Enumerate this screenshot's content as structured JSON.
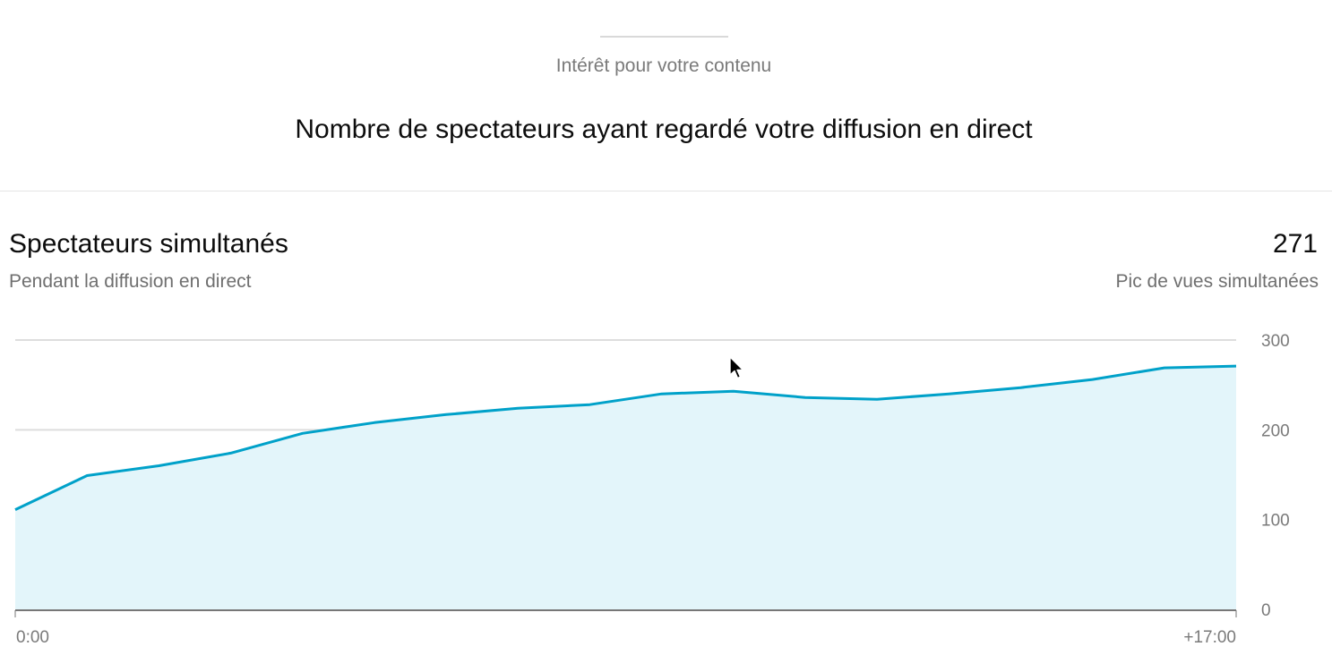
{
  "header": {
    "eyebrow": "Intérêt pour votre contenu",
    "title": "Nombre de spectateurs ayant regardé votre diffusion en direct"
  },
  "card": {
    "title": "Spectateurs simultanés",
    "subtitle": "Pendant la diffusion en direct",
    "metric_value": "271",
    "metric_label": "Pic de vues simultanées"
  },
  "colors": {
    "line": "#00a1c9",
    "fill": "#e3f5fa",
    "grid": "#dddddd",
    "baseline": "#777777"
  },
  "icons": {
    "cursor": "mouse-pointer-icon"
  },
  "chart_data": {
    "type": "area",
    "title": "Spectateurs simultanés",
    "xlabel": "",
    "ylabel": "",
    "ylim": [
      0,
      300
    ],
    "y_ticks": [
      0,
      100,
      200,
      300
    ],
    "x_tick_labels": [
      "0:00",
      "+17:00"
    ],
    "grid": true,
    "series": [
      {
        "x": [
          0,
          1,
          2,
          3,
          4,
          5,
          6,
          7,
          8,
          9,
          10,
          11,
          12,
          13,
          14,
          15,
          16,
          17
        ],
        "values": [
          111,
          149,
          160,
          174,
          196,
          208,
          217,
          224,
          228,
          240,
          243,
          236,
          234,
          240,
          247,
          256,
          269,
          271
        ]
      }
    ]
  }
}
